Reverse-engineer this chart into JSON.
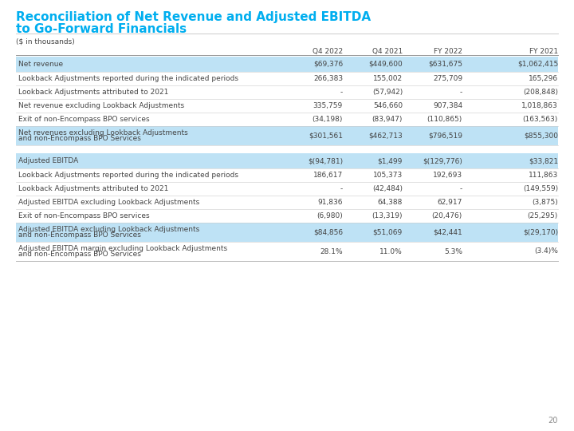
{
  "title_line1": "Reconciliation of Net Revenue and Adjusted EBITDA",
  "title_line2": "to Go-Forward Financials",
  "title_color": "#00AEEF",
  "subtitle": "($ in thousands)",
  "page_number": "20",
  "columns": [
    "",
    "Q4 2022",
    "Q4 2021",
    "FY 2022",
    "FY 2021"
  ],
  "highlight_bg": "#BEE2F5",
  "section1": [
    {
      "label": "Net revenue",
      "values": [
        "$69,376",
        "$449,600",
        "$631,675",
        "$1,062,415"
      ],
      "highlight": true,
      "bold": false,
      "two_line": false
    },
    {
      "label": "Lookback Adjustments reported during the indicated periods",
      "values": [
        "266,383",
        "155,002",
        "275,709",
        "165,296"
      ],
      "highlight": false,
      "bold": false,
      "two_line": false
    },
    {
      "label": "Lookback Adjustments attributed to 2021",
      "values": [
        "-",
        "(57,942)",
        "-",
        "(208,848)"
      ],
      "highlight": false,
      "bold": false,
      "two_line": false
    },
    {
      "label": "Net revenue excluding Lookback Adjustments",
      "values": [
        "335,759",
        "546,660",
        "907,384",
        "1,018,863"
      ],
      "highlight": false,
      "bold": false,
      "two_line": false
    },
    {
      "label": "Exit of non-Encompass BPO services",
      "values": [
        "(34,198)",
        "(83,947)",
        "(110,865)",
        "(163,563)"
      ],
      "highlight": false,
      "bold": false,
      "two_line": false
    },
    {
      "label": "Net revenues excluding Lookback Adjustments\nand non-Encompass BPO Services",
      "values": [
        "$301,561",
        "$462,713",
        "$796,519",
        "$855,300"
      ],
      "highlight": true,
      "bold": false,
      "two_line": true
    }
  ],
  "section2": [
    {
      "label": "Adjusted EBITDA",
      "values": [
        "$(94,781)",
        "$1,499",
        "$(129,776)",
        "$33,821"
      ],
      "highlight": true,
      "bold": false,
      "two_line": false
    },
    {
      "label": "Lookback Adjustments reported during the indicated periods",
      "values": [
        "186,617",
        "105,373",
        "192,693",
        "111,863"
      ],
      "highlight": false,
      "bold": false,
      "two_line": false
    },
    {
      "label": "Lookback Adjustments attributed to 2021",
      "values": [
        "-",
        "(42,484)",
        "-",
        "(149,559)"
      ],
      "highlight": false,
      "bold": false,
      "two_line": false
    },
    {
      "label": "Adjusted EBITDA excluding Lookback Adjustments",
      "values": [
        "91,836",
        "64,388",
        "62,917",
        "(3,875)"
      ],
      "highlight": false,
      "bold": false,
      "two_line": false
    },
    {
      "label": "Exit of non-Encompass BPO services",
      "values": [
        "(6,980)",
        "(13,319)",
        "(20,476)",
        "(25,295)"
      ],
      "highlight": false,
      "bold": false,
      "two_line": false
    },
    {
      "label": "Adjusted EBITDA excluding Lookback Adjustments\nand non-Encompass BPO Services",
      "values": [
        "$84,856",
        "$51,069",
        "$42,441",
        "$(29,170)"
      ],
      "highlight": true,
      "bold": false,
      "two_line": true
    },
    {
      "label": "Adjusted EBITDA margin excluding Lookback Adjustments\nand non-Encompass BPO Services",
      "values": [
        "28.1%",
        "11.0%",
        "5.3%",
        "(3.4)%"
      ],
      "highlight": false,
      "bold": false,
      "two_line": true
    }
  ]
}
